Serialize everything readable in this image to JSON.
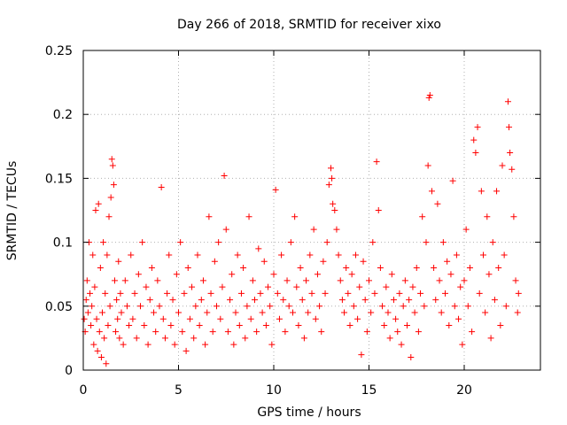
{
  "chart_data": {
    "type": "scatter",
    "title": "Day 266 of 2018, SRMTID for receiver xixo",
    "xlabel": "GPS time / hours",
    "ylabel": "SRMTID / TECUs",
    "xlim": [
      0,
      24
    ],
    "ylim": [
      0,
      0.25
    ],
    "grid": true,
    "marker": "+",
    "colors": {
      "points": "#ff0000",
      "grid": "#b0b0b0",
      "axes": "#000000"
    },
    "xticks": [
      {
        "value": 0,
        "label": "0"
      },
      {
        "value": 5,
        "label": "5"
      },
      {
        "value": 10,
        "label": "10"
      },
      {
        "value": 15,
        "label": "15"
      },
      {
        "value": 20,
        "label": "20"
      }
    ],
    "yticks": [
      {
        "value": 0,
        "label": "0"
      },
      {
        "value": 0.05,
        "label": "0.05"
      },
      {
        "value": 0.1,
        "label": "0.1"
      },
      {
        "value": 0.15,
        "label": "0.15"
      },
      {
        "value": 0.2,
        "label": "0.2"
      },
      {
        "value": 0.25,
        "label": "0.25"
      }
    ],
    "series": [
      {
        "name": "SRMTID",
        "points": [
          [
            0.05,
            0.04
          ],
          [
            0.1,
            0.03
          ],
          [
            0.15,
            0.055
          ],
          [
            0.2,
            0.07
          ],
          [
            0.25,
            0.045
          ],
          [
            0.3,
            0.1
          ],
          [
            0.35,
            0.06
          ],
          [
            0.4,
            0.035
          ],
          [
            0.45,
            0.05
          ],
          [
            0.5,
            0.09
          ],
          [
            0.55,
            0.02
          ],
          [
            0.6,
            0.065
          ],
          [
            0.65,
            0.125
          ],
          [
            0.7,
            0.04
          ],
          [
            0.75,
            0.015
          ],
          [
            0.8,
            0.13
          ],
          [
            0.85,
            0.03
          ],
          [
            0.9,
            0.08
          ],
          [
            0.95,
            0.01
          ],
          [
            1.0,
            0.045
          ],
          [
            1.05,
            0.1
          ],
          [
            1.1,
            0.025
          ],
          [
            1.15,
            0.06
          ],
          [
            1.2,
            0.005
          ],
          [
            1.25,
            0.09
          ],
          [
            1.3,
            0.035
          ],
          [
            1.35,
            0.12
          ],
          [
            1.4,
            0.05
          ],
          [
            1.45,
            0.135
          ],
          [
            1.5,
            0.165
          ],
          [
            1.55,
            0.16
          ],
          [
            1.6,
            0.145
          ],
          [
            1.65,
            0.07
          ],
          [
            1.7,
            0.03
          ],
          [
            1.75,
            0.055
          ],
          [
            1.8,
            0.04
          ],
          [
            1.85,
            0.085
          ],
          [
            1.9,
            0.025
          ],
          [
            1.95,
            0.06
          ],
          [
            2.0,
            0.045
          ],
          [
            2.1,
            0.02
          ],
          [
            2.2,
            0.07
          ],
          [
            2.3,
            0.05
          ],
          [
            2.4,
            0.035
          ],
          [
            2.5,
            0.09
          ],
          [
            2.6,
            0.04
          ],
          [
            2.7,
            0.06
          ],
          [
            2.8,
            0.025
          ],
          [
            2.9,
            0.075
          ],
          [
            3.0,
            0.05
          ],
          [
            3.1,
            0.1
          ],
          [
            3.2,
            0.035
          ],
          [
            3.3,
            0.065
          ],
          [
            3.4,
            0.02
          ],
          [
            3.5,
            0.055
          ],
          [
            3.6,
            0.08
          ],
          [
            3.7,
            0.045
          ],
          [
            3.8,
            0.03
          ],
          [
            3.9,
            0.07
          ],
          [
            4.0,
            0.05
          ],
          [
            4.1,
            0.143
          ],
          [
            4.2,
            0.04
          ],
          [
            4.3,
            0.025
          ],
          [
            4.4,
            0.06
          ],
          [
            4.5,
            0.09
          ],
          [
            4.6,
            0.035
          ],
          [
            4.7,
            0.055
          ],
          [
            4.8,
            0.02
          ],
          [
            4.9,
            0.075
          ],
          [
            5.0,
            0.045
          ],
          [
            5.1,
            0.1
          ],
          [
            5.2,
            0.03
          ],
          [
            5.3,
            0.06
          ],
          [
            5.4,
            0.015
          ],
          [
            5.5,
            0.08
          ],
          [
            5.6,
            0.04
          ],
          [
            5.7,
            0.065
          ],
          [
            5.8,
            0.025
          ],
          [
            5.9,
            0.05
          ],
          [
            6.0,
            0.09
          ],
          [
            6.1,
            0.035
          ],
          [
            6.2,
            0.055
          ],
          [
            6.3,
            0.07
          ],
          [
            6.4,
            0.02
          ],
          [
            6.5,
            0.045
          ],
          [
            6.6,
            0.12
          ],
          [
            6.7,
            0.06
          ],
          [
            6.8,
            0.03
          ],
          [
            6.9,
            0.085
          ],
          [
            7.0,
            0.05
          ],
          [
            7.1,
            0.1
          ],
          [
            7.2,
            0.04
          ],
          [
            7.3,
            0.065
          ],
          [
            7.4,
            0.152
          ],
          [
            7.5,
            0.11
          ],
          [
            7.6,
            0.03
          ],
          [
            7.7,
            0.055
          ],
          [
            7.8,
            0.075
          ],
          [
            7.9,
            0.02
          ],
          [
            8.0,
            0.045
          ],
          [
            8.1,
            0.09
          ],
          [
            8.2,
            0.035
          ],
          [
            8.3,
            0.06
          ],
          [
            8.4,
            0.08
          ],
          [
            8.5,
            0.025
          ],
          [
            8.6,
            0.05
          ],
          [
            8.7,
            0.12
          ],
          [
            8.8,
            0.04
          ],
          [
            8.9,
            0.07
          ],
          [
            9.0,
            0.055
          ],
          [
            9.1,
            0.03
          ],
          [
            9.2,
            0.095
          ],
          [
            9.3,
            0.06
          ],
          [
            9.4,
            0.045
          ],
          [
            9.5,
            0.085
          ],
          [
            9.6,
            0.035
          ],
          [
            9.7,
            0.065
          ],
          [
            9.8,
            0.05
          ],
          [
            9.9,
            0.02
          ],
          [
            10.0,
            0.075
          ],
          [
            10.1,
            0.141
          ],
          [
            10.2,
            0.06
          ],
          [
            10.3,
            0.04
          ],
          [
            10.4,
            0.09
          ],
          [
            10.5,
            0.055
          ],
          [
            10.6,
            0.03
          ],
          [
            10.7,
            0.07
          ],
          [
            10.8,
            0.05
          ],
          [
            10.9,
            0.1
          ],
          [
            11.0,
            0.045
          ],
          [
            11.1,
            0.12
          ],
          [
            11.2,
            0.065
          ],
          [
            11.3,
            0.035
          ],
          [
            11.4,
            0.08
          ],
          [
            11.5,
            0.055
          ],
          [
            11.6,
            0.025
          ],
          [
            11.7,
            0.07
          ],
          [
            11.8,
            0.045
          ],
          [
            11.9,
            0.09
          ],
          [
            12.0,
            0.06
          ],
          [
            12.1,
            0.11
          ],
          [
            12.2,
            0.04
          ],
          [
            12.3,
            0.075
          ],
          [
            12.4,
            0.05
          ],
          [
            12.5,
            0.03
          ],
          [
            12.6,
            0.085
          ],
          [
            12.7,
            0.06
          ],
          [
            12.8,
            0.1
          ],
          [
            12.9,
            0.145
          ],
          [
            13.0,
            0.158
          ],
          [
            13.05,
            0.15
          ],
          [
            13.1,
            0.13
          ],
          [
            13.2,
            0.125
          ],
          [
            13.3,
            0.11
          ],
          [
            13.4,
            0.09
          ],
          [
            13.5,
            0.07
          ],
          [
            13.6,
            0.055
          ],
          [
            13.7,
            0.045
          ],
          [
            13.8,
            0.08
          ],
          [
            13.9,
            0.06
          ],
          [
            14.0,
            0.035
          ],
          [
            14.1,
            0.075
          ],
          [
            14.2,
            0.05
          ],
          [
            14.3,
            0.09
          ],
          [
            14.4,
            0.04
          ],
          [
            14.5,
            0.065
          ],
          [
            14.6,
            0.012
          ],
          [
            14.7,
            0.085
          ],
          [
            14.8,
            0.055
          ],
          [
            14.9,
            0.03
          ],
          [
            15.0,
            0.07
          ],
          [
            15.1,
            0.045
          ],
          [
            15.2,
            0.1
          ],
          [
            15.3,
            0.06
          ],
          [
            15.4,
            0.163
          ],
          [
            15.5,
            0.125
          ],
          [
            15.6,
            0.08
          ],
          [
            15.7,
            0.05
          ],
          [
            15.8,
            0.035
          ],
          [
            15.9,
            0.065
          ],
          [
            16.0,
            0.045
          ],
          [
            16.1,
            0.025
          ],
          [
            16.2,
            0.075
          ],
          [
            16.3,
            0.055
          ],
          [
            16.4,
            0.04
          ],
          [
            16.5,
            0.03
          ],
          [
            16.6,
            0.06
          ],
          [
            16.7,
            0.02
          ],
          [
            16.8,
            0.05
          ],
          [
            16.9,
            0.07
          ],
          [
            17.0,
            0.035
          ],
          [
            17.1,
            0.055
          ],
          [
            17.2,
            0.01
          ],
          [
            17.3,
            0.065
          ],
          [
            17.4,
            0.045
          ],
          [
            17.5,
            0.08
          ],
          [
            17.6,
            0.03
          ],
          [
            17.7,
            0.06
          ],
          [
            17.8,
            0.12
          ],
          [
            17.9,
            0.05
          ],
          [
            18.0,
            0.1
          ],
          [
            18.1,
            0.16
          ],
          [
            18.15,
            0.213
          ],
          [
            18.2,
            0.215
          ],
          [
            18.3,
            0.14
          ],
          [
            18.4,
            0.08
          ],
          [
            18.5,
            0.055
          ],
          [
            18.6,
            0.13
          ],
          [
            18.7,
            0.07
          ],
          [
            18.8,
            0.045
          ],
          [
            18.9,
            0.1
          ],
          [
            19.0,
            0.06
          ],
          [
            19.1,
            0.085
          ],
          [
            19.2,
            0.035
          ],
          [
            19.3,
            0.075
          ],
          [
            19.4,
            0.148
          ],
          [
            19.5,
            0.05
          ],
          [
            19.6,
            0.09
          ],
          [
            19.7,
            0.04
          ],
          [
            19.8,
            0.065
          ],
          [
            19.9,
            0.02
          ],
          [
            20.0,
            0.07
          ],
          [
            20.1,
            0.11
          ],
          [
            20.2,
            0.05
          ],
          [
            20.3,
            0.08
          ],
          [
            20.4,
            0.03
          ],
          [
            20.5,
            0.18
          ],
          [
            20.6,
            0.17
          ],
          [
            20.7,
            0.19
          ],
          [
            20.8,
            0.06
          ],
          [
            20.9,
            0.14
          ],
          [
            21.0,
            0.09
          ],
          [
            21.1,
            0.045
          ],
          [
            21.2,
            0.12
          ],
          [
            21.3,
            0.075
          ],
          [
            21.4,
            0.025
          ],
          [
            21.5,
            0.1
          ],
          [
            21.6,
            0.055
          ],
          [
            21.7,
            0.14
          ],
          [
            21.8,
            0.08
          ],
          [
            21.9,
            0.035
          ],
          [
            22.0,
            0.16
          ],
          [
            22.1,
            0.09
          ],
          [
            22.2,
            0.05
          ],
          [
            22.3,
            0.21
          ],
          [
            22.35,
            0.19
          ],
          [
            22.4,
            0.17
          ],
          [
            22.5,
            0.157
          ],
          [
            22.6,
            0.12
          ],
          [
            22.7,
            0.07
          ],
          [
            22.8,
            0.045
          ],
          [
            22.85,
            0.06
          ]
        ]
      }
    ]
  }
}
